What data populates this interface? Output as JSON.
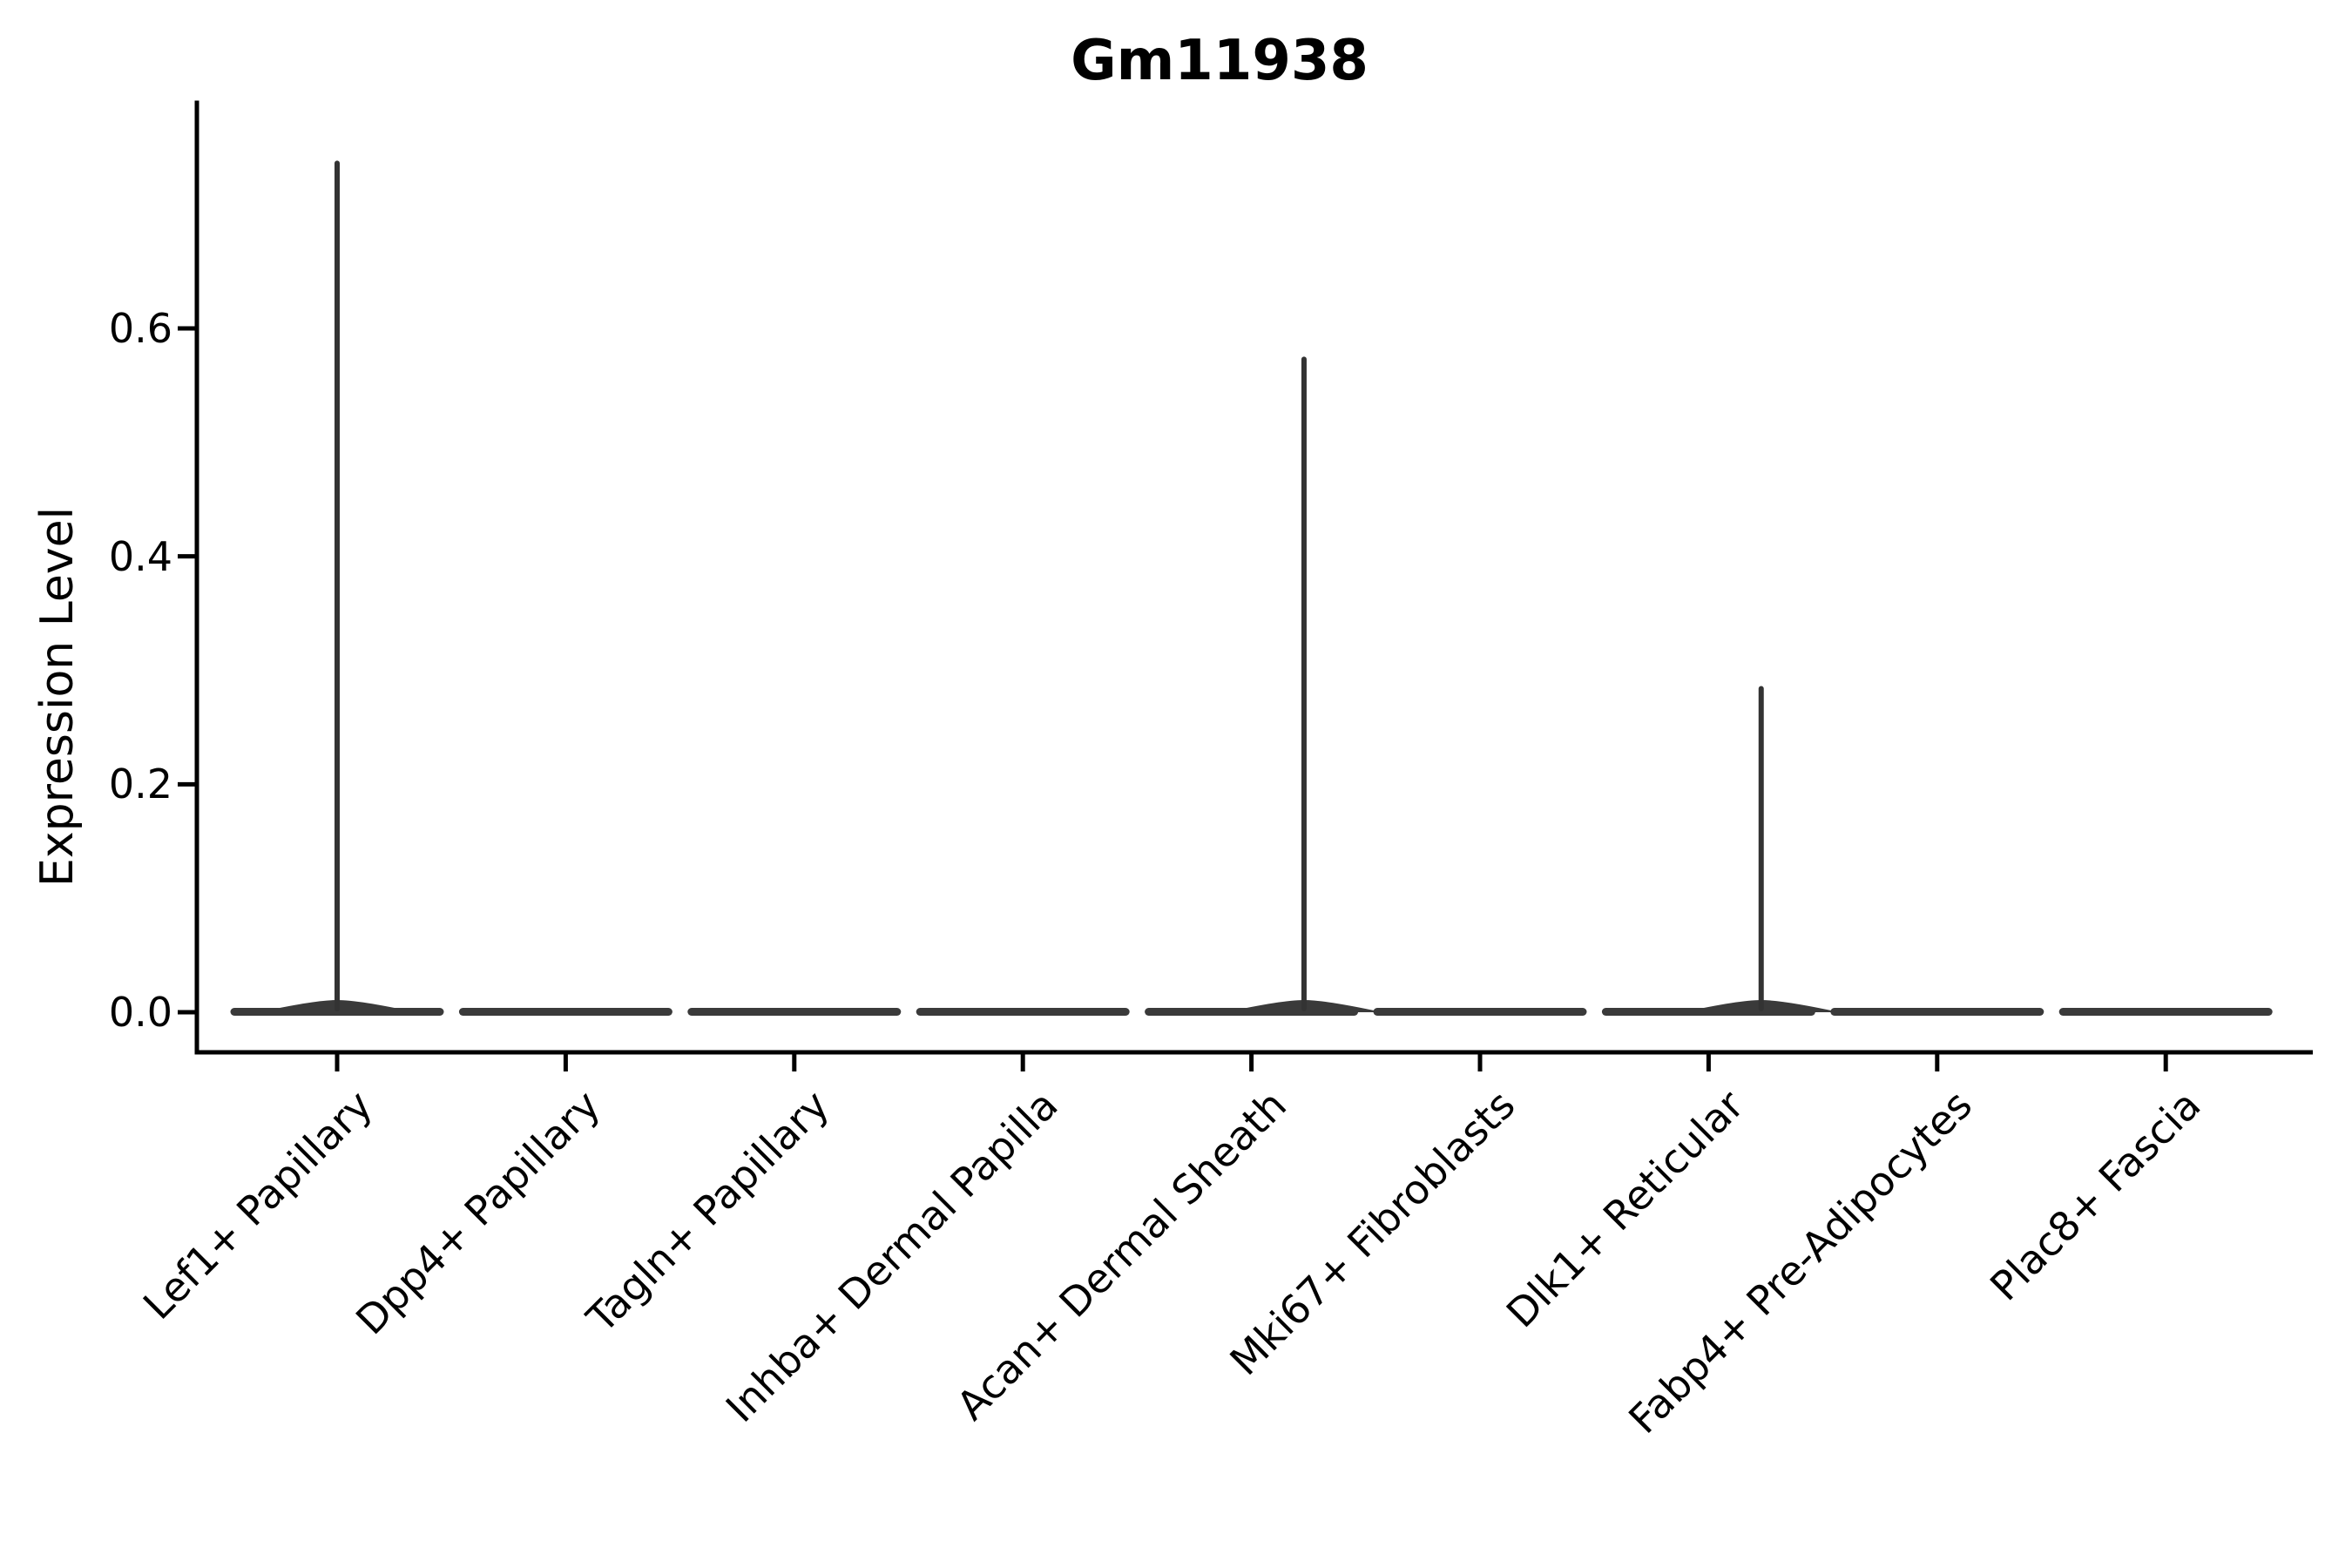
{
  "chart_data": {
    "type": "violin",
    "title": "Gm11938",
    "xlabel": "",
    "ylabel": "Expression Level",
    "categories": [
      "Lef1+ Papillary",
      "Dpp4+ Papillary",
      "Tagln+ Papillary",
      "Inhba+ Dermal Papilla",
      "Acan+ Dermal Sheath",
      "Mki67+ Fibroblasts",
      "Dlk1+ Reticular",
      "Fabp4+ Pre-Adipocytes",
      "Plac8+ Fascia"
    ],
    "max_values": [
      0.745,
      0,
      0,
      0,
      0.573,
      0,
      0.284,
      0,
      0
    ],
    "spike_offset_frac": [
      0,
      0,
      0,
      0,
      0.23,
      0,
      0.23,
      0,
      0
    ],
    "distribution_note": "Expression is concentrated at 0 in every cluster (flat violin bodies); thin density spikes rise to the maximum value in Lef1+ Papillary, Acan+ Dermal Sheath and Dlk1+ Reticular.",
    "yticks": [
      0.0,
      0.2,
      0.4,
      0.6
    ],
    "ytick_labels": [
      "0.0",
      "0.2",
      "0.4",
      "0.6"
    ],
    "ylim": [
      -0.035,
      0.8
    ],
    "grid": false,
    "legend": false,
    "colors": {
      "violin": "#3a3a3a",
      "spike": "#333333",
      "axis": "#000000",
      "text": "#000000",
      "background": "#ffffff"
    }
  }
}
